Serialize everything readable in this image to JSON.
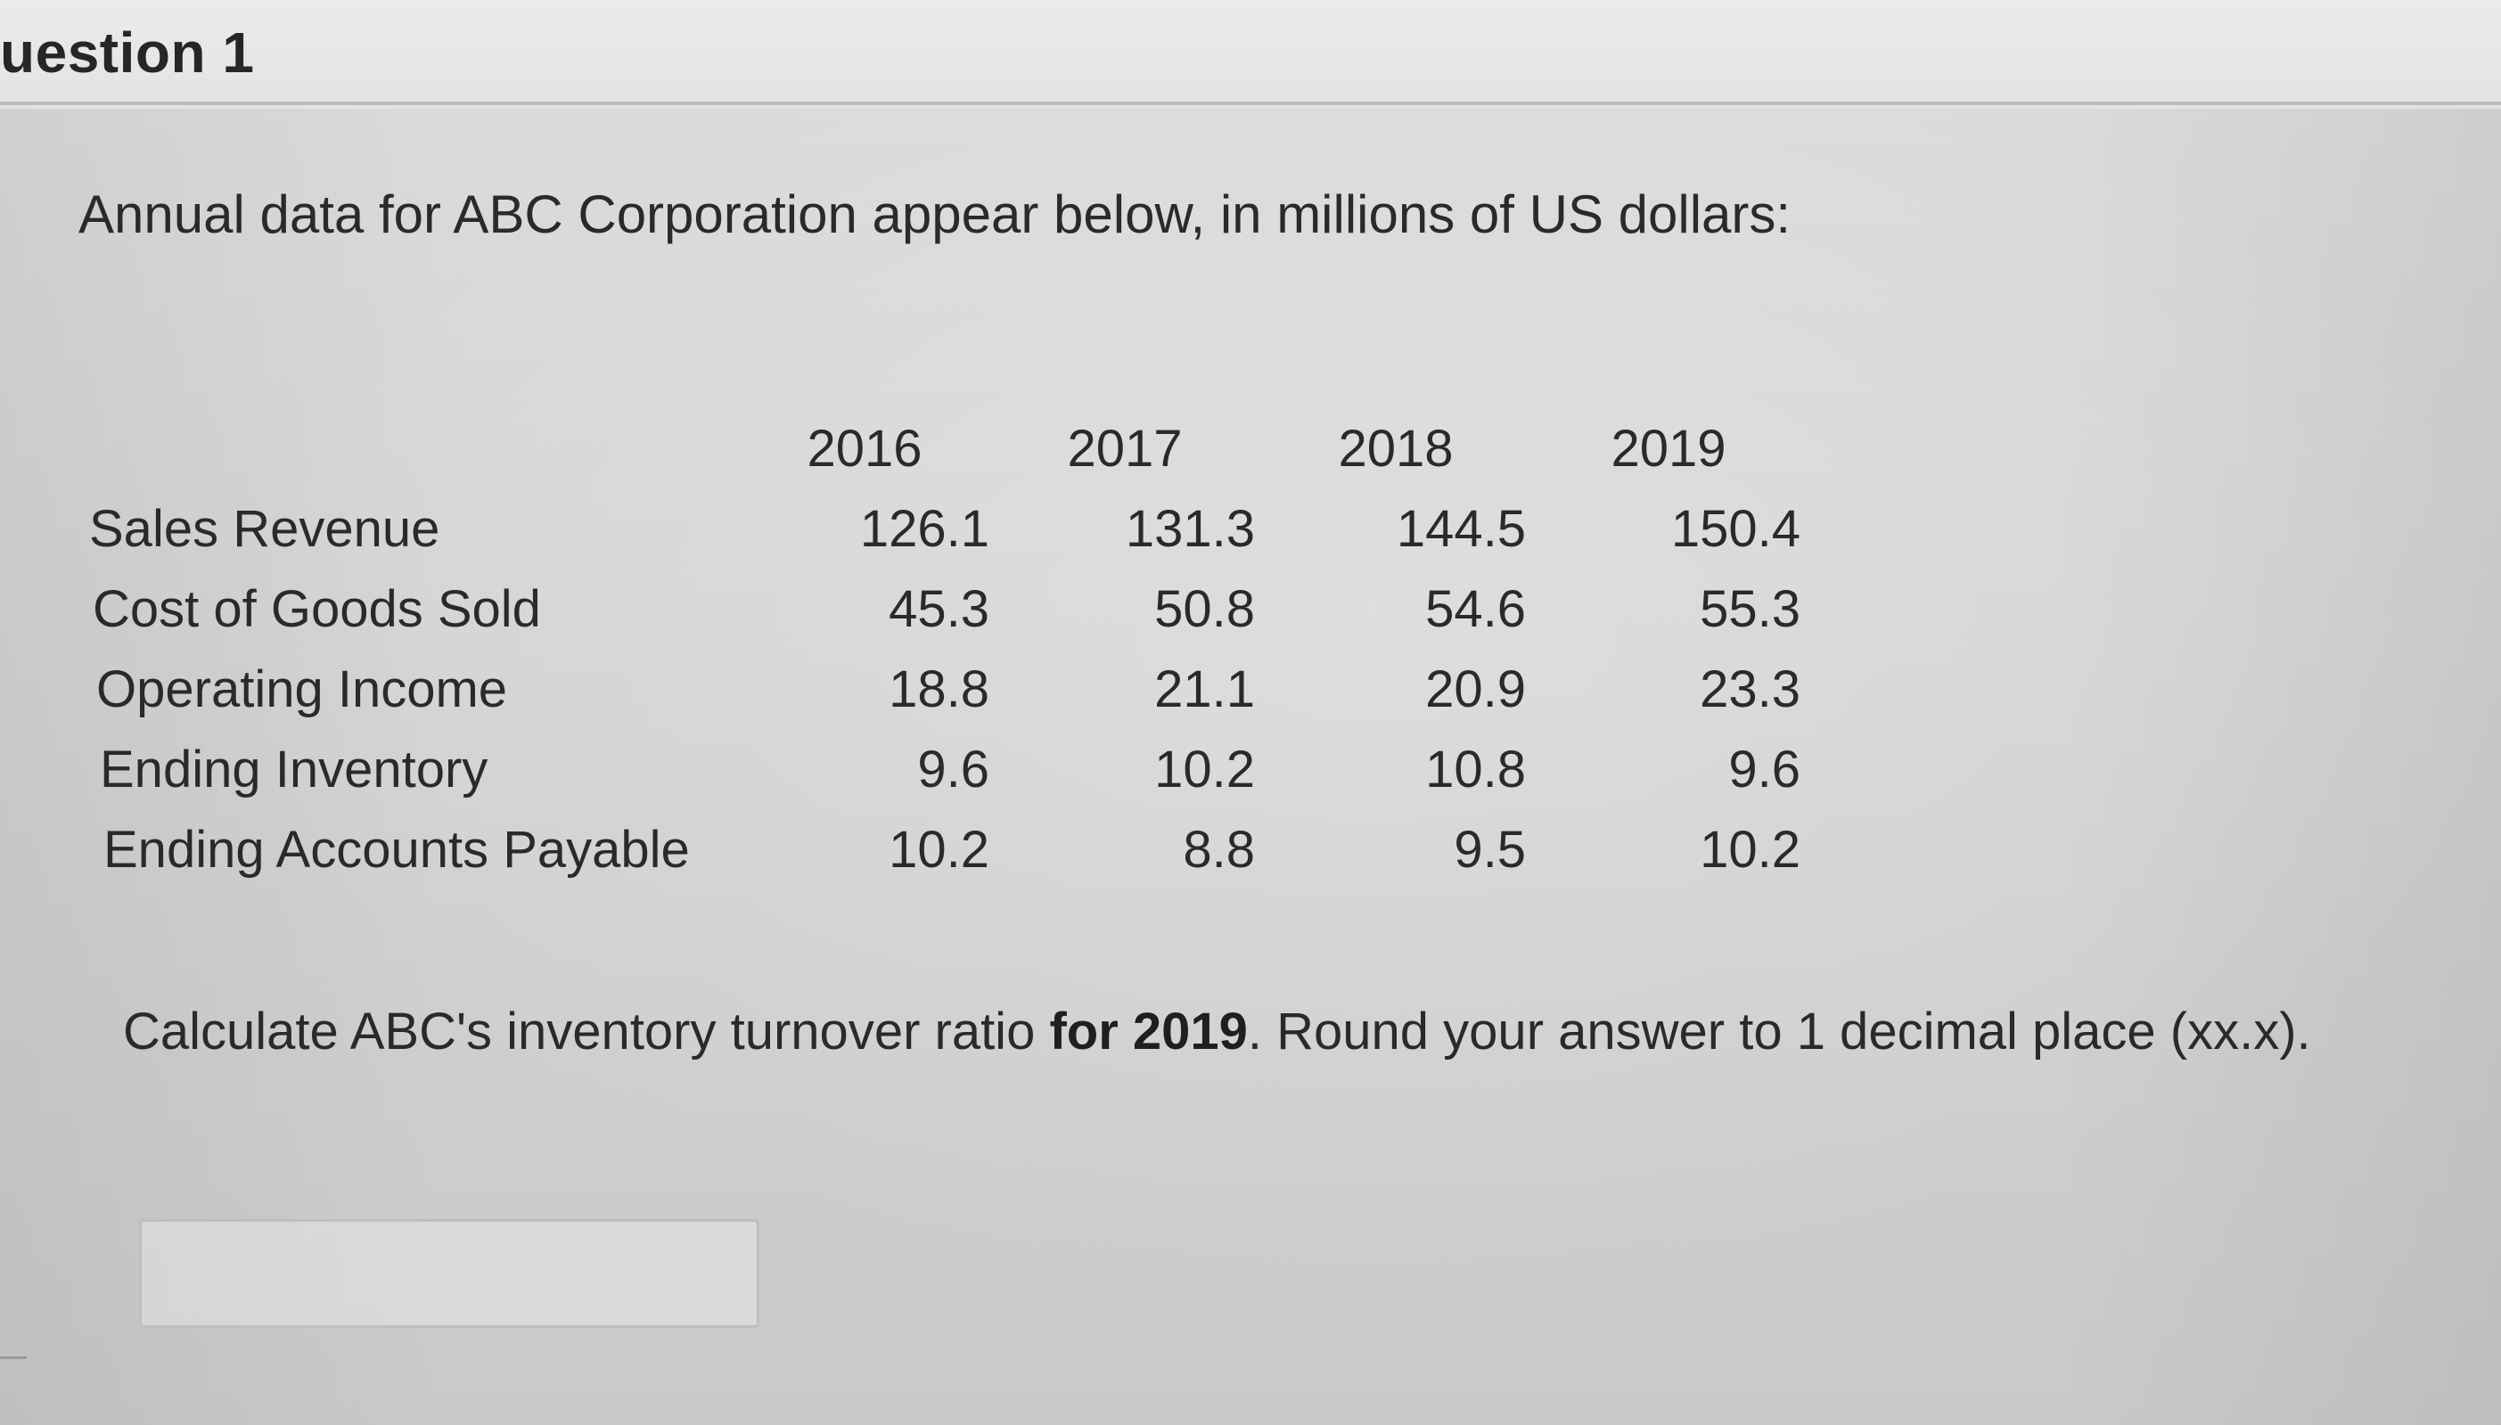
{
  "question": {
    "title": "uestion 1"
  },
  "intro_text": "Annual data for ABC Corporation appear below, in millions of US dollars:",
  "table": {
    "years": [
      "2016",
      "2017",
      "2018",
      "2019"
    ],
    "rows": [
      {
        "label": "Sales Revenue",
        "values": [
          "126.1",
          "131.3",
          "144.5",
          "150.4"
        ]
      },
      {
        "label": "Cost of Goods Sold",
        "values": [
          "45.3",
          "50.8",
          "54.6",
          "55.3"
        ]
      },
      {
        "label": "Operating Income",
        "values": [
          "18.8",
          "21.1",
          "20.9",
          "23.3"
        ]
      },
      {
        "label": "Ending Inventory",
        "values": [
          "9.6",
          "10.2",
          "10.8",
          "9.6"
        ]
      },
      {
        "label": "Ending Accounts Payable",
        "values": [
          "10.2",
          "8.8",
          "9.5",
          "10.2"
        ]
      }
    ]
  },
  "instruction": {
    "before": "Calculate ABC's inventory turnover ratio ",
    "bold": "for 2019",
    "after": ".  Round your answer to 1 decimal place (xx.x)."
  },
  "answer": {
    "value": ""
  }
}
